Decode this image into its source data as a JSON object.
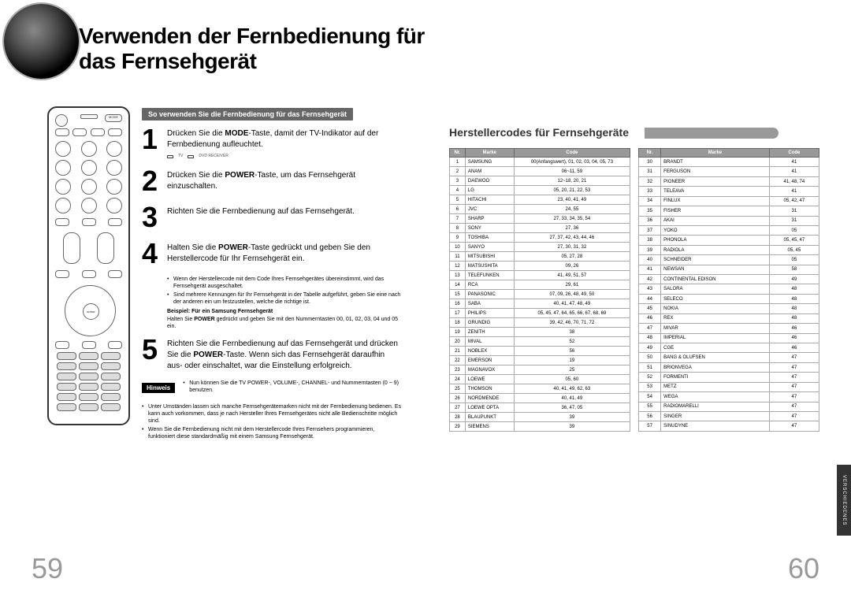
{
  "title": "Verwenden der Fernbedienung für das Fernsehgerät",
  "left": {
    "section_header": "So verwenden Sie die Fernbedienung für das Fernsehgerät",
    "step1": "Drücken Sie die MODE-Taste, damit der TV-Indikator auf der Fernbedienung aufleuchtet.",
    "ind_tv": "TV",
    "ind_dvd": "DVD RECEIVER",
    "step2": "Drücken Sie die POWER-Taste, um das Fernsehgerät einzuschalten.",
    "step3": "Richten Sie die Fernbedienung auf das Fernsehgerät.",
    "step4": "Halten Sie die POWER-Taste gedrückt und geben Sie den Herstellercode für Ihr Fernsehgerät ein.",
    "note4a": "Wenn der Herstellercode mit dem Code Ihres Fernsehgerätes übereinstimmt, wird das Fernsehgerät ausgeschaltet.",
    "note4b": "Sind mehrere Kennungen für Ihr Fernsehgerät in der Tabelle aufgeführt, geben Sie eine nach der anderen ein um festzustellen, welche die richtige ist.",
    "beispiel_label": "Beispiel: Für ein Samsung Fernsehgerät",
    "beispiel_text": "Halten Sie POWER gedrückt und geben Sie mit den Nummerntasten 00, 01, 02, 03, 04 und 05 ein.",
    "step5": "Richten Sie die Fernbedienung auf das Fernsehgerät und drücken Sie die POWER-Taste. Wenn sich das Fernsehgerät daraufhin aus- oder einschaltet, war die Einstellung erfolgreich.",
    "note5": "Nun können Sie die TV POWER-, VOLUME-, CHANNEL- und Nummerntasten (0 ~ 9) benutzen.",
    "hinweis_label": "Hinweis",
    "hinweis1": "Unter Umständen lassen sich manche Fernsehgerätemarken nicht mit der Fernbedienung bedienen. Es kann auch vorkommen, dass je nach Hersteller Ihres Fernsehgerätes nicht alle Bedienschritte möglich sind.",
    "hinweis2": "Wenn Sie die Fernbedienung nicht mit dem Herstellercode Ihres Fernsehers programmieren, funktioniert diese standardmäßig mit einem Samsung Fernsehgerät.",
    "page_num": "59"
  },
  "right": {
    "section_title": "Herstellercodes für Fernsehgeräte",
    "col_nr": "Nr.",
    "col_marke": "Marke",
    "col_code": "Code",
    "rows1": [
      [
        "1",
        "SAMSUNG",
        "00(Anfangswert), 01, 02, 03, 04, 05, 73"
      ],
      [
        "2",
        "ANAM",
        "06~11, 59"
      ],
      [
        "3",
        "DAEWOO",
        "12~18, 20, 21"
      ],
      [
        "4",
        "LG",
        "05, 20, 21, 22, 53"
      ],
      [
        "5",
        "HITACHI",
        "23, 40, 41, 49"
      ],
      [
        "6",
        "JVC",
        "24, 55"
      ],
      [
        "7",
        "SHARP",
        "27, 33, 34, 35, 54"
      ],
      [
        "8",
        "SONY",
        "27, 36"
      ],
      [
        "9",
        "TOSHIBA",
        "27, 37, 42, 43, 44, 46"
      ],
      [
        "10",
        "SANYO",
        "27, 30, 31, 32"
      ],
      [
        "11",
        "MITSUBISHI",
        "05, 27, 28"
      ],
      [
        "12",
        "MATSUSHITA",
        "09, 26"
      ],
      [
        "13",
        "TELEFUNKEN",
        "41, 49, 51, 57"
      ],
      [
        "14",
        "RCA",
        "29, 61"
      ],
      [
        "15",
        "PANASONIC",
        "07, 09, 26, 48, 49, 50"
      ],
      [
        "16",
        "SABA",
        "40, 41, 47, 48, 49"
      ],
      [
        "17",
        "PHILIPS",
        "05, 45, 47, 64, 65, 66, 67, 68, 69"
      ],
      [
        "18",
        "GRUNDIG",
        "39, 42, 46, 70, 71, 72"
      ],
      [
        "19",
        "ZENITH",
        "38"
      ],
      [
        "20",
        "MIVAL",
        "52"
      ],
      [
        "21",
        "NOBLEX",
        "56"
      ],
      [
        "22",
        "EMERSON",
        "19"
      ],
      [
        "23",
        "MAGNAVOX",
        "25"
      ],
      [
        "24",
        "LOEWE",
        "05, 60"
      ],
      [
        "25",
        "THOMSON",
        "40, 41, 49, 62, 63"
      ],
      [
        "26",
        "NORDMENDE",
        "40, 41, 49"
      ],
      [
        "27",
        "LOEWE OPTA",
        "36, 47, 05"
      ],
      [
        "28",
        "BLAUPUNKT",
        "39"
      ],
      [
        "29",
        "SIEMENS",
        "39"
      ]
    ],
    "rows2": [
      [
        "30",
        "BRANDT",
        "41"
      ],
      [
        "31",
        "FERGUSON",
        "41"
      ],
      [
        "32",
        "PIONEER",
        "41, 48, 74"
      ],
      [
        "33",
        "TELEAVA",
        "41"
      ],
      [
        "34",
        "FINLUX",
        "05, 42, 47"
      ],
      [
        "35",
        "FISHER",
        "31"
      ],
      [
        "36",
        "AKAI",
        "31"
      ],
      [
        "37",
        "YOKO",
        "05"
      ],
      [
        "38",
        "PHONOLA",
        "05, 45, 47"
      ],
      [
        "39",
        "RADIOLA",
        "05, 45"
      ],
      [
        "40",
        "SCHNEIDER",
        "05"
      ],
      [
        "41",
        "NEWSAN",
        "58"
      ],
      [
        "42",
        "CONTINENTAL EDISON",
        "49"
      ],
      [
        "43",
        "SALORA",
        "48"
      ],
      [
        "44",
        "SELECO",
        "48"
      ],
      [
        "45",
        "NOKIA",
        "48"
      ],
      [
        "46",
        "REX",
        "48"
      ],
      [
        "47",
        "MIVAR",
        "46"
      ],
      [
        "48",
        "IMPERIAL",
        "46"
      ],
      [
        "49",
        "CGE",
        "46"
      ],
      [
        "50",
        "BANG & OLUFSEN",
        "47"
      ],
      [
        "51",
        "BRIONVEGA",
        "47"
      ],
      [
        "52",
        "FORMENTI",
        "47"
      ],
      [
        "53",
        "METZ",
        "47"
      ],
      [
        "54",
        "WEGA",
        "47"
      ],
      [
        "55",
        "RADIOMARELLI",
        "47"
      ],
      [
        "56",
        "SINGER",
        "47"
      ],
      [
        "57",
        "SINUDYNE",
        "47"
      ]
    ],
    "page_num": "60",
    "side_tab": "VERSCHIEDENES"
  }
}
